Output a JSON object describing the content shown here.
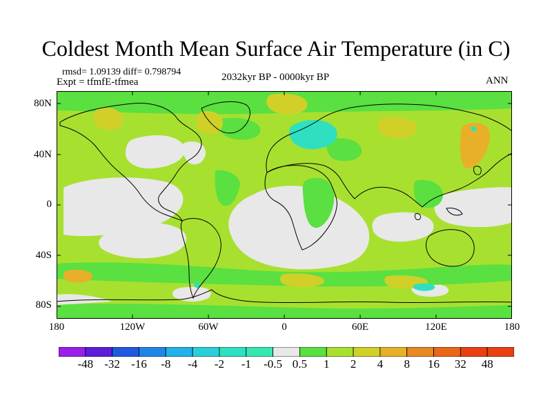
{
  "title": "Coldest Month Mean Surface Air Temperature (in C)",
  "stats": "rmsd= 1.09139 diff= 0.798794",
  "expt": "Expt = tfmfE-tfmea",
  "period": "2032kyr BP - 0000kyr BP",
  "season": "ANN",
  "y_axis_labels": [
    "80N",
    "40N",
    "0",
    "40S",
    "80S"
  ],
  "x_axis_labels": [
    "180",
    "120W",
    "60W",
    "0",
    "60E",
    "120E",
    "180"
  ],
  "colorbar": {
    "labels": [
      "-48",
      "-32",
      "-16",
      "-8",
      "-4",
      "-2",
      "-1",
      "-0.5",
      "0.5",
      "1",
      "2",
      "4",
      "8",
      "16",
      "32",
      "48"
    ],
    "colors": [
      "#9a1fe8",
      "#5a20d8",
      "#1f5ae0",
      "#1f86e8",
      "#24b0ea",
      "#2ad0d8",
      "#2ee0c0",
      "#36e8b0",
      "#e8e8e8",
      "#5ae040",
      "#a8e030",
      "#d0d028",
      "#e8b028",
      "#e88820",
      "#e86818",
      "#e84010"
    ]
  },
  "legend_colors": {
    "zero": "#e8e8e8",
    "light_green": "#a8e030",
    "green": "#5ae040",
    "yellow": "#d0d028",
    "orange": "#e8b028",
    "cyan": "#2ee0c0",
    "coast": "#000000"
  }
}
